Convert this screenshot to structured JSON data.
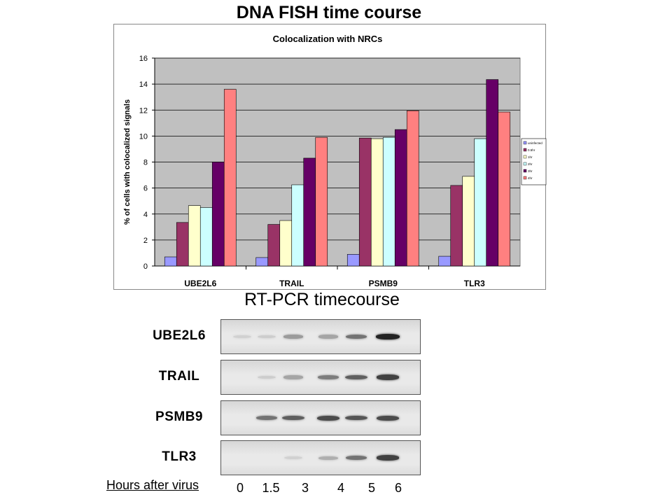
{
  "page_title": "DNA FISH time course",
  "chart_data": {
    "type": "bar",
    "title": "Colocalization with NRCs",
    "xlabel": "",
    "ylabel": "% of cells with colocalized signals",
    "categories": [
      "UBE2L6",
      "TRAIL",
      "PSMB9",
      "TLR3"
    ],
    "ylim": [
      0,
      16
    ],
    "yticks": [
      0,
      2,
      4,
      6,
      8,
      10,
      12,
      14,
      16
    ],
    "grid": true,
    "legend_position": "right",
    "series": [
      {
        "name": "uninfected",
        "color": "#9999ff",
        "values": [
          0.7,
          0.65,
          0.9,
          0.75
        ]
      },
      {
        "name": "0.5hr",
        "color": "#993366",
        "values": [
          3.35,
          3.2,
          9.85,
          6.2
        ]
      },
      {
        "name": "1hr",
        "color": "#ffffcc",
        "values": [
          4.65,
          3.5,
          9.8,
          6.9
        ]
      },
      {
        "name": "2hr",
        "color": "#ccffff",
        "values": [
          4.5,
          6.25,
          9.9,
          9.8
        ]
      },
      {
        "name": "3hr",
        "color": "#660066",
        "values": [
          8.0,
          8.3,
          10.5,
          14.35
        ]
      },
      {
        "name": "4hr",
        "color": "#ff8080",
        "values": [
          13.6,
          9.9,
          11.95,
          11.85
        ]
      }
    ]
  },
  "rt_pcr": {
    "title": "RT-PCR timecourse",
    "genes": [
      {
        "name": "UBE2L6",
        "intensities": [
          0.08,
          0.1,
          0.35,
          0.3,
          0.55,
          0.95
        ]
      },
      {
        "name": "TRAIL",
        "intensities": [
          0.0,
          0.1,
          0.3,
          0.5,
          0.65,
          0.8
        ]
      },
      {
        "name": "PSMB9",
        "intensities": [
          0.0,
          0.55,
          0.65,
          0.75,
          0.7,
          0.75
        ]
      },
      {
        "name": "TLR3",
        "intensities": [
          0.0,
          0.0,
          0.08,
          0.25,
          0.55,
          0.8
        ]
      }
    ],
    "hours_label": "Hours after virus",
    "hours": [
      "0",
      "1.5",
      "3",
      "4",
      "5",
      "6"
    ]
  }
}
